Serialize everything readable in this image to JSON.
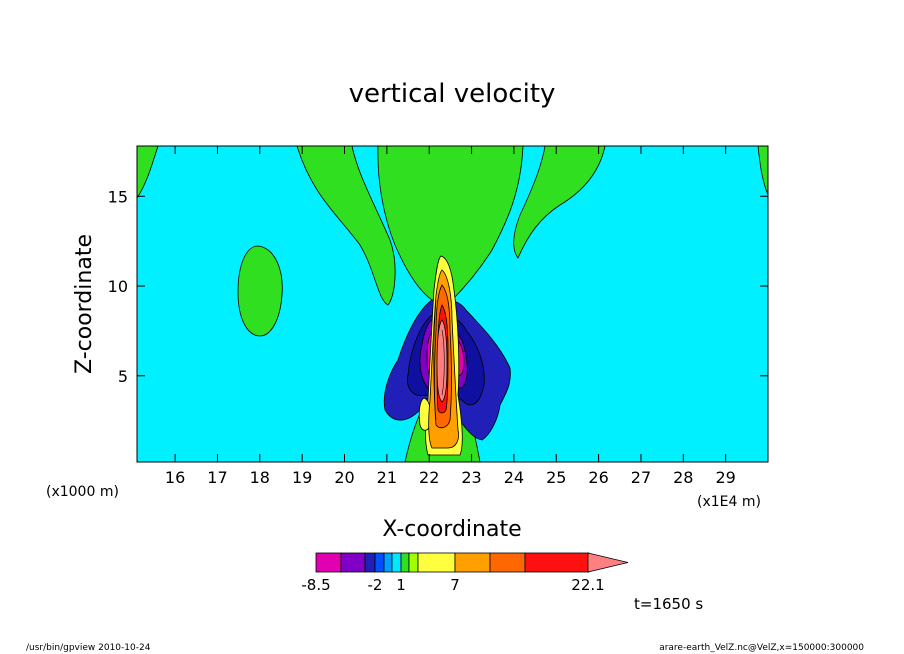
{
  "chart_data": {
    "type": "contour",
    "title": "vertical velocity",
    "xlabel": "X-coordinate",
    "ylabel": "Z-coordinate",
    "x_unit_note": "(x1E4 m)",
    "y_unit_note": "(x1000 m)",
    "xlim": [
      15.1,
      30.0
    ],
    "ylim": [
      0.2,
      17.8
    ],
    "x_ticks": [
      16,
      17,
      18,
      19,
      20,
      21,
      22,
      23,
      24,
      25,
      26,
      27,
      28,
      29
    ],
    "y_ticks": [
      5,
      10,
      15
    ],
    "time_label": "t=1650 s",
    "colorbar": {
      "colors": [
        "#e000b0",
        "#8000c8",
        "#2020b8",
        "#0050ff",
        "#00a0ff",
        "#00e8ff",
        "#30e020",
        "#a0ff00",
        "#ffff40",
        "#ffa000",
        "#ff6800",
        "#ff1010",
        "#ff8080"
      ],
      "tick_labels": [
        "-8.5",
        "-2",
        "1",
        "7",
        "22.1"
      ],
      "tick_values": [
        -8.5,
        -2,
        1,
        7,
        22.1
      ],
      "min": -8.5,
      "max": 22.1
    },
    "background_color": "#00f0ff"
  },
  "footer": {
    "left": "/usr/bin/gpview   2010-10-24",
    "right": "arare-earth_VelZ.nc@VelZ,x=150000:300000"
  }
}
